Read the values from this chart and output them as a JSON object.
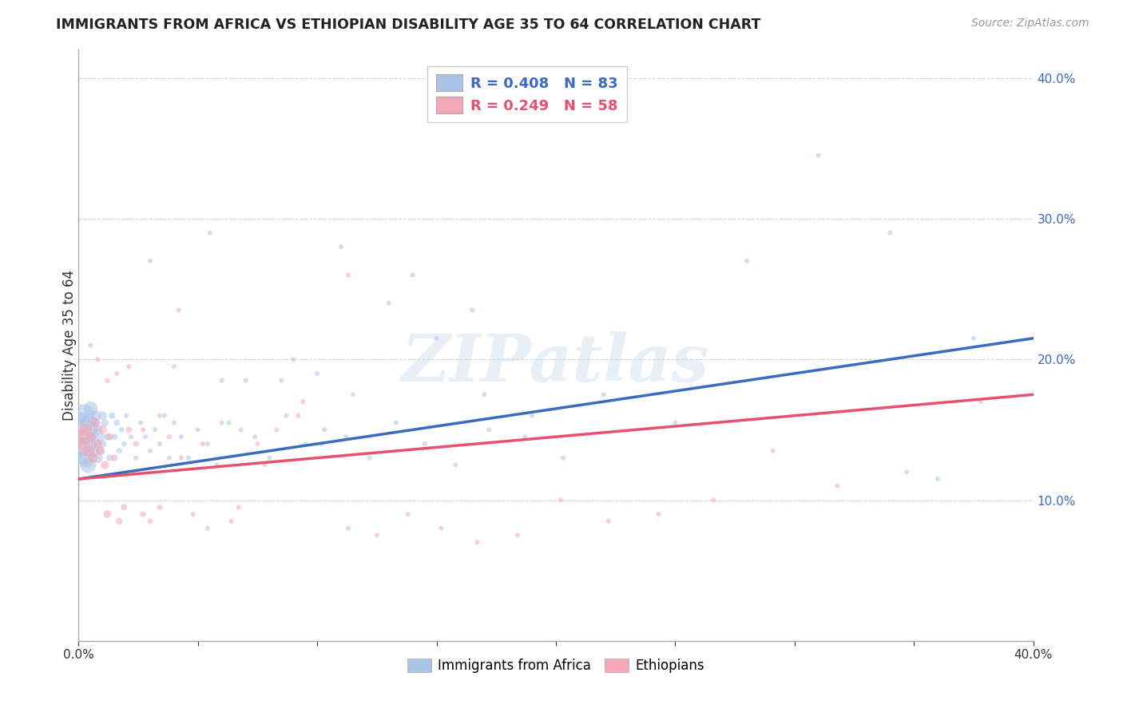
{
  "title": "IMMIGRANTS FROM AFRICA VS ETHIOPIAN DISABILITY AGE 35 TO 64 CORRELATION CHART",
  "source": "Source: ZipAtlas.com",
  "ylabel": "Disability Age 35 to 64",
  "xlim": [
    0.0,
    0.4
  ],
  "ylim": [
    0.0,
    0.42
  ],
  "background_color": "#ffffff",
  "grid_color": "#d0d0d0",
  "blue_color": "#aac4e8",
  "pink_color": "#f4a8b8",
  "blue_line_color": "#3a6bbf",
  "pink_line_color": "#e85070",
  "watermark": "ZIPatlas",
  "legend_R_blue": "R = 0.408",
  "legend_N_blue": "N = 83",
  "legend_R_pink": "R = 0.249",
  "legend_N_pink": "N = 58",
  "legend_label_blue": "Immigrants from Africa",
  "legend_label_pink": "Ethiopians",
  "blue_line_x0": 0.0,
  "blue_line_y0": 0.115,
  "blue_line_x1": 0.4,
  "blue_line_y1": 0.215,
  "pink_line_x0": 0.0,
  "pink_line_y0": 0.115,
  "pink_line_x1": 0.4,
  "pink_line_y1": 0.175,
  "blue_x": [
    0.001,
    0.001,
    0.002,
    0.002,
    0.003,
    0.003,
    0.004,
    0.004,
    0.005,
    0.005,
    0.006,
    0.006,
    0.007,
    0.007,
    0.008,
    0.008,
    0.009,
    0.009,
    0.01,
    0.01,
    0.011,
    0.012,
    0.013,
    0.014,
    0.015,
    0.016,
    0.017,
    0.018,
    0.019,
    0.02,
    0.022,
    0.024,
    0.026,
    0.028,
    0.03,
    0.032,
    0.034,
    0.036,
    0.038,
    0.04,
    0.043,
    0.046,
    0.05,
    0.054,
    0.058,
    0.063,
    0.068,
    0.074,
    0.08,
    0.087,
    0.095,
    0.103,
    0.112,
    0.122,
    0.133,
    0.145,
    0.158,
    0.172,
    0.187,
    0.203,
    0.03,
    0.04,
    0.055,
    0.07,
    0.085,
    0.1,
    0.115,
    0.13,
    0.15,
    0.17,
    0.19,
    0.22,
    0.25,
    0.28,
    0.31,
    0.34,
    0.36,
    0.375,
    0.06,
    0.09,
    0.11,
    0.14,
    0.165
  ],
  "blue_y": [
    0.15,
    0.135,
    0.14,
    0.16,
    0.145,
    0.13,
    0.155,
    0.125,
    0.15,
    0.165,
    0.135,
    0.155,
    0.14,
    0.16,
    0.13,
    0.15,
    0.145,
    0.135,
    0.16,
    0.14,
    0.155,
    0.145,
    0.13,
    0.16,
    0.145,
    0.155,
    0.135,
    0.15,
    0.14,
    0.16,
    0.145,
    0.13,
    0.155,
    0.145,
    0.135,
    0.15,
    0.14,
    0.16,
    0.13,
    0.155,
    0.145,
    0.13,
    0.15,
    0.14,
    0.125,
    0.155,
    0.15,
    0.145,
    0.13,
    0.16,
    0.14,
    0.15,
    0.145,
    0.13,
    0.155,
    0.14,
    0.125,
    0.15,
    0.145,
    0.13,
    0.27,
    0.195,
    0.29,
    0.185,
    0.185,
    0.19,
    0.175,
    0.24,
    0.215,
    0.175,
    0.16,
    0.175,
    0.155,
    0.27,
    0.345,
    0.29,
    0.115,
    0.215,
    0.185,
    0.2,
    0.28,
    0.26,
    0.235
  ],
  "blue_sizes": [
    500,
    350,
    280,
    220,
    180,
    150,
    130,
    110,
    95,
    85,
    75,
    65,
    58,
    52,
    46,
    42,
    38,
    34,
    31,
    28,
    25,
    22,
    20,
    18,
    16,
    15,
    14,
    13,
    12,
    11,
    10,
    10,
    10,
    10,
    10,
    10,
    10,
    10,
    10,
    10,
    10,
    10,
    10,
    10,
    10,
    10,
    10,
    10,
    10,
    10,
    10,
    10,
    10,
    10,
    10,
    10,
    10,
    10,
    10,
    10,
    10,
    10,
    10,
    10,
    10,
    10,
    10,
    10,
    10,
    10,
    10,
    10,
    10,
    10,
    10,
    10,
    10,
    10,
    10,
    10,
    10,
    10,
    10
  ],
  "pink_x": [
    0.001,
    0.002,
    0.003,
    0.004,
    0.005,
    0.006,
    0.007,
    0.008,
    0.009,
    0.01,
    0.011,
    0.012,
    0.013,
    0.015,
    0.017,
    0.019,
    0.021,
    0.024,
    0.027,
    0.03,
    0.034,
    0.038,
    0.043,
    0.048,
    0.054,
    0.06,
    0.067,
    0.075,
    0.083,
    0.092,
    0.102,
    0.113,
    0.125,
    0.138,
    0.152,
    0.167,
    0.184,
    0.202,
    0.222,
    0.243,
    0.266,
    0.291,
    0.318,
    0.347,
    0.378,
    0.005,
    0.008,
    0.012,
    0.016,
    0.021,
    0.027,
    0.034,
    0.042,
    0.052,
    0.064,
    0.078,
    0.094,
    0.113
  ],
  "pink_y": [
    0.145,
    0.14,
    0.15,
    0.135,
    0.145,
    0.13,
    0.155,
    0.14,
    0.135,
    0.15,
    0.125,
    0.09,
    0.145,
    0.13,
    0.085,
    0.095,
    0.15,
    0.14,
    0.09,
    0.085,
    0.095,
    0.145,
    0.13,
    0.09,
    0.08,
    0.155,
    0.095,
    0.14,
    0.15,
    0.16,
    0.14,
    0.08,
    0.075,
    0.09,
    0.08,
    0.07,
    0.075,
    0.1,
    0.085,
    0.09,
    0.1,
    0.135,
    0.11,
    0.12,
    0.17,
    0.21,
    0.2,
    0.185,
    0.19,
    0.195,
    0.15,
    0.16,
    0.235,
    0.14,
    0.085,
    0.125,
    0.17,
    0.26
  ],
  "pink_sizes": [
    120,
    90,
    75,
    65,
    55,
    50,
    45,
    40,
    36,
    32,
    29,
    26,
    23,
    21,
    19,
    17,
    16,
    15,
    14,
    13,
    12,
    11,
    10,
    10,
    10,
    10,
    10,
    10,
    10,
    10,
    10,
    10,
    10,
    10,
    10,
    10,
    10,
    10,
    10,
    10,
    10,
    10,
    10,
    10,
    10,
    10,
    10,
    10,
    10,
    10,
    10,
    10,
    10,
    10,
    10,
    10,
    10,
    10
  ]
}
